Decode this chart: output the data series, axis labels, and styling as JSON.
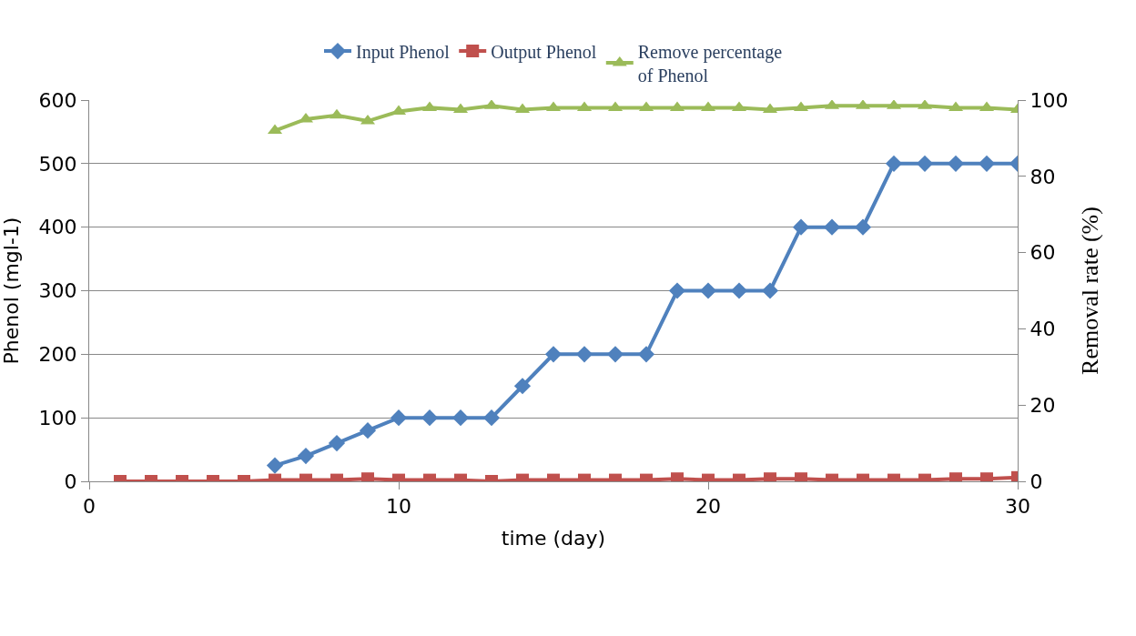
{
  "chart_data": {
    "type": "line",
    "xlabel": "time (day)",
    "ylabel": "Phenol (mgl-1)",
    "y2label": "Removal rate (%)",
    "xlim": [
      0,
      30
    ],
    "xticks": [
      0,
      10,
      20,
      30
    ],
    "ylim": [
      0,
      600
    ],
    "yticks": [
      0,
      100,
      200,
      300,
      400,
      500,
      600
    ],
    "y2lim": [
      0,
      100
    ],
    "y2ticks": [
      0,
      20,
      40,
      60,
      80,
      100
    ],
    "grid": "y",
    "legend": "top",
    "line_style": "solid",
    "series": [
      {
        "name": "Input Phenol",
        "color": "#4f81bd",
        "marker": "diamond",
        "x": [
          6,
          7,
          8,
          9,
          10,
          11,
          12,
          13,
          14,
          15,
          16,
          17,
          18,
          19,
          20,
          21,
          22,
          23,
          24,
          25,
          26,
          27,
          28,
          29,
          30
        ],
        "values": [
          25,
          40,
          60,
          80,
          100,
          100,
          100,
          100,
          150,
          200,
          200,
          200,
          200,
          300,
          300,
          300,
          300,
          400,
          400,
          400,
          500,
          500,
          500,
          500,
          500
        ]
      },
      {
        "name": "Output Phenol",
        "color": "#c0504d",
        "marker": "square",
        "x": [
          1,
          2,
          3,
          4,
          5,
          6,
          7,
          8,
          9,
          10,
          11,
          12,
          13,
          14,
          15,
          16,
          17,
          18,
          19,
          20,
          21,
          22,
          23,
          24,
          25,
          26,
          27,
          28,
          29,
          30
        ],
        "values": [
          0,
          0,
          0,
          0,
          0,
          2,
          2,
          2,
          4,
          2,
          2,
          2,
          0,
          2,
          2,
          2,
          2,
          2,
          4,
          2,
          2,
          4,
          4,
          2,
          2,
          2,
          2,
          4,
          4,
          6
        ]
      },
      {
        "name": "Remove percentage\nof Phenol",
        "color": "#9bbb59",
        "marker": "triangle",
        "axis": "y2",
        "x": [
          6,
          7,
          8,
          9,
          10,
          11,
          12,
          13,
          14,
          15,
          16,
          17,
          18,
          19,
          20,
          21,
          22,
          23,
          24,
          25,
          26,
          27,
          28,
          29,
          30
        ],
        "values": [
          92,
          95,
          96,
          94.5,
          97,
          98,
          97.5,
          98.5,
          97.5,
          98,
          98,
          98,
          98,
          98,
          98,
          98,
          97.5,
          98,
          98.5,
          98.5,
          98.5,
          98.5,
          98,
          98,
          97.5
        ]
      }
    ]
  }
}
